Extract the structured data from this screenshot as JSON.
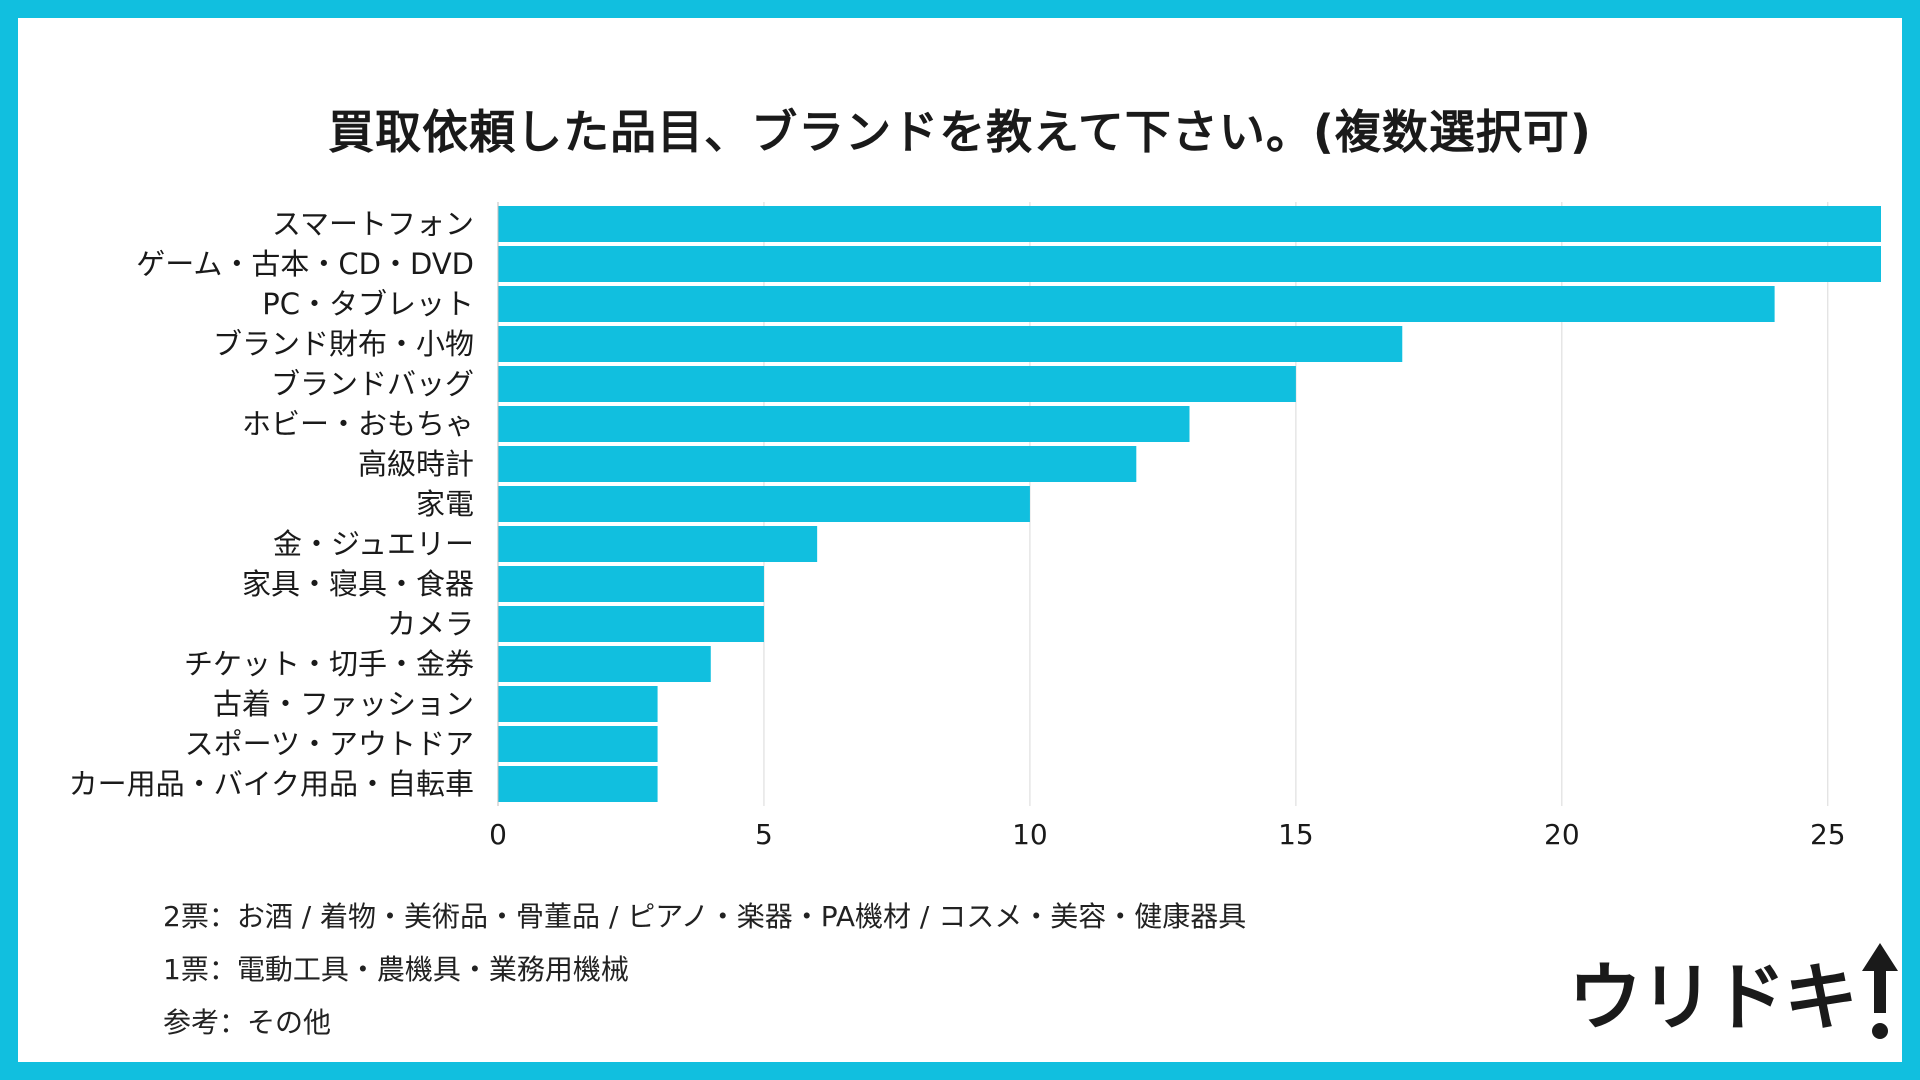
{
  "colors": {
    "frame": "#11bfdf",
    "bar": "#11bfdf",
    "background": "#ffffff",
    "text": "#1a1a1a",
    "grid": "#d9d9d9"
  },
  "chart_data": {
    "type": "bar",
    "orientation": "horizontal",
    "title": "買取依頼した品目、ブランドを教えて下さい。(複数選択可)",
    "categories": [
      "スマートフォン",
      "ゲーム・古本・CD・DVD",
      "PC・タブレット",
      "ブランド財布・小物",
      "ブランドバッグ",
      "ホビー・おもちゃ",
      "高級時計",
      "家電",
      "金・ジュエリー",
      "家具・寝具・食器",
      "カメラ",
      "チケット・切手・金券",
      "古着・ファッション",
      "スポーツ・アウトドア",
      "カー用品・バイク用品・自転車"
    ],
    "values": [
      26,
      26,
      24,
      17,
      15,
      13,
      12,
      10,
      6,
      5,
      5,
      4,
      3,
      3,
      3
    ],
    "xlim": [
      0,
      26
    ],
    "xticks": [
      0,
      5,
      10,
      15,
      20,
      25
    ],
    "grid": true,
    "legend": "none"
  },
  "notes": {
    "line1": "2票：お酒 / 着物・美術品・骨董品 / ピアノ・楽器・PA機材 / コスメ・美容・健康器具",
    "line2": "1票：電動工具・農機具・業務用機械",
    "line3": "参考：その他"
  },
  "logo": {
    "text": "ウリドキ",
    "icon": "up-arrow-exclamation-icon"
  }
}
